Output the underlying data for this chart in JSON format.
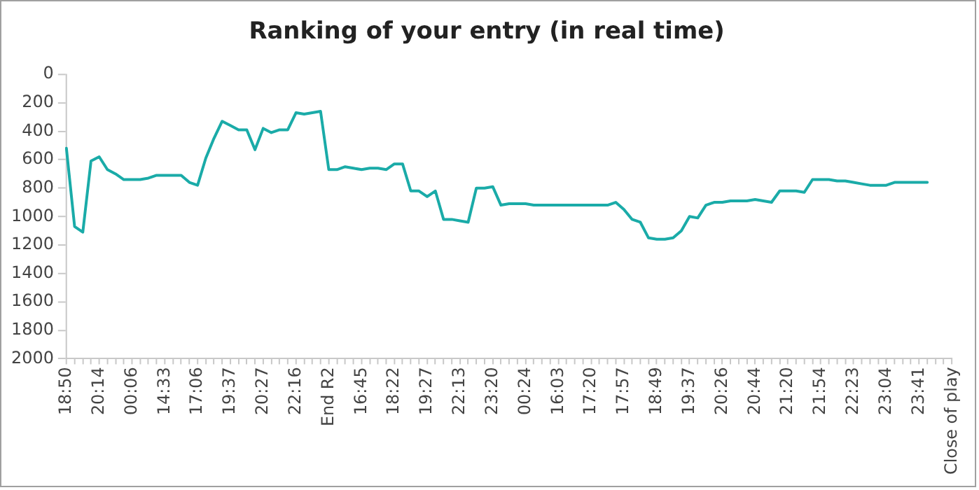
{
  "chart_data": {
    "type": "line",
    "title": "Ranking of your entry (in real time)",
    "categories": [
      "18:50",
      null,
      null,
      null,
      "20:14",
      null,
      null,
      null,
      "00:06",
      null,
      null,
      null,
      "14:33",
      null,
      null,
      null,
      "17:06",
      null,
      null,
      null,
      "19:37",
      null,
      null,
      null,
      "20:27",
      null,
      null,
      null,
      "22:16",
      null,
      null,
      null,
      "End R2",
      null,
      null,
      null,
      "16:45",
      null,
      null,
      null,
      "18:22",
      null,
      null,
      null,
      "19:27",
      null,
      null,
      null,
      "22:13",
      null,
      null,
      null,
      "23:20",
      null,
      null,
      null,
      "00:24",
      null,
      null,
      null,
      "16:03",
      null,
      null,
      null,
      "17:20",
      null,
      null,
      null,
      "17:57",
      null,
      null,
      null,
      "18:49",
      null,
      null,
      null,
      "19:37",
      null,
      null,
      null,
      "20:26",
      null,
      null,
      null,
      "20:44",
      null,
      null,
      null,
      "21:20",
      null,
      null,
      null,
      "21:54",
      null,
      null,
      null,
      "22:23",
      null,
      null,
      null,
      "23:04",
      null,
      null,
      null,
      "23:41",
      null,
      null,
      null,
      "Close of play"
    ],
    "series": [
      {
        "color": "#1aaba8",
        "values": [
          520,
          1070,
          1110,
          610,
          580,
          670,
          700,
          740,
          740,
          740,
          730,
          710,
          710,
          710,
          710,
          760,
          780,
          590,
          450,
          330,
          360,
          390,
          390,
          530,
          380,
          410,
          390,
          390,
          270,
          280,
          270,
          260,
          670,
          670,
          650,
          660,
          670,
          660,
          660,
          670,
          630,
          630,
          820,
          820,
          860,
          820,
          1020,
          1020,
          1030,
          1040,
          800,
          800,
          790,
          920,
          910,
          910,
          910,
          920,
          920,
          920,
          920,
          920,
          920,
          920,
          920,
          920,
          920,
          900,
          950,
          1020,
          1040,
          1150,
          1160,
          1160,
          1150,
          1100,
          1000,
          1010,
          920,
          900,
          900,
          890,
          890,
          890,
          880,
          890,
          900,
          820,
          820,
          820,
          830,
          740,
          740,
          740,
          750,
          750,
          760,
          770,
          780,
          780,
          780,
          760,
          760,
          760,
          760,
          760,
          null,
          null,
          null
        ]
      }
    ],
    "ylim": [
      2000,
      0
    ],
    "yticks": [
      0,
      200,
      400,
      600,
      800,
      1000,
      1200,
      1400,
      1600,
      1800,
      2000
    ],
    "grid": false,
    "legend": false,
    "marker": "none",
    "line_style": "solid"
  }
}
